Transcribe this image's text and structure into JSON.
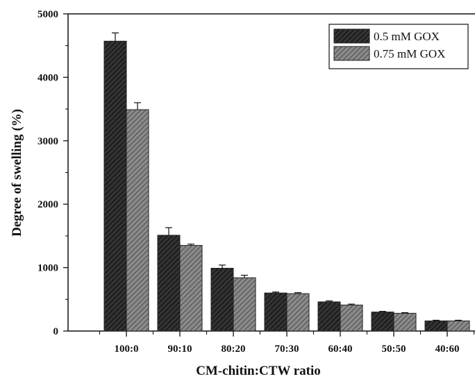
{
  "chart_data": {
    "type": "bar",
    "xlabel": "CM-chitin:CTW ratio",
    "ylabel": "Degree of swelling (%)",
    "ylim": [
      0,
      5000
    ],
    "yticks": [
      0,
      1000,
      2000,
      3000,
      4000,
      5000
    ],
    "categories": [
      "100:0",
      "90:10",
      "80:20",
      "70:30",
      "60:40",
      "50:50",
      "40:60"
    ],
    "series": [
      {
        "name": "0.5 mM GOX",
        "values": [
          4570,
          1510,
          990,
          600,
          460,
          300,
          160
        ],
        "errors": [
          130,
          120,
          50,
          15,
          15,
          10,
          10
        ],
        "color": "#2a2a2a",
        "pattern": "hatched-dark"
      },
      {
        "name": "0.75 mM GOX",
        "values": [
          3490,
          1350,
          840,
          590,
          410,
          280,
          160
        ],
        "errors": [
          110,
          20,
          40,
          15,
          15,
          10,
          10
        ],
        "color": "#7a7a7a",
        "pattern": "hatched-light"
      }
    ],
    "legend": "top-right",
    "grid": false,
    "error_bars": true
  }
}
